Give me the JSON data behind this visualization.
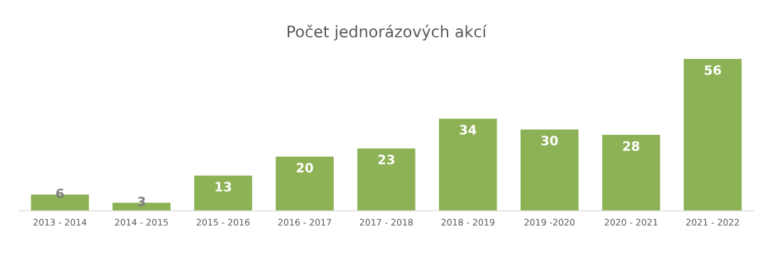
{
  "chart_data": {
    "type": "bar",
    "title": "Počet jednorázových akcí",
    "categories": [
      "2013 - 2014",
      "2014 - 2015",
      "2015 - 2016",
      "2016 - 2017",
      "2017 - 2018",
      "2018 - 2019",
      "2019 -2020",
      "2020 - 2021",
      "2021 - 2022"
    ],
    "values": [
      6,
      3,
      13,
      20,
      23,
      34,
      30,
      28,
      56
    ],
    "color": "#8db255",
    "data_labels": true,
    "grid": false,
    "legend": false
  }
}
